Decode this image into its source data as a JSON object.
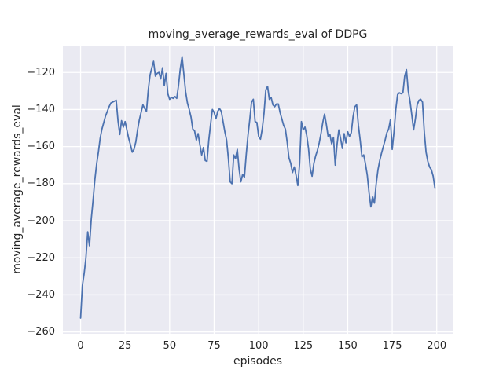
{
  "chart_data": {
    "type": "line",
    "title": "moving_average_rewards_eval of DDPG",
    "xlabel": "episodes",
    "ylabel": "moving_average_rewards_eval",
    "style": "seaborn-darkgrid",
    "grid": true,
    "legend": false,
    "xlim": [
      -9.95,
      208.95
    ],
    "ylim": [
      -261,
      -105.5
    ],
    "x_tick_values": [
      0,
      25,
      50,
      75,
      100,
      125,
      150,
      175,
      200
    ],
    "x_tick_labels": [
      "0",
      "25",
      "50",
      "75",
      "100",
      "125",
      "150",
      "175",
      "200"
    ],
    "y_tick_values": [
      -120,
      -140,
      -160,
      -180,
      -200,
      -220,
      -240,
      -260
    ],
    "y_tick_labels": [
      "−120",
      "−140",
      "−160",
      "−180",
      "−200",
      "−220",
      "−240",
      "−260"
    ],
    "colors": {
      "line": "#4c72b0",
      "plot_background": "#eaeaf2",
      "grid": "#ffffff",
      "text": "#262626",
      "figure_background": "#ffffff"
    },
    "series": [
      {
        "name": "moving_average_rewards_eval",
        "x_start": 0,
        "x_step": 1,
        "values": [
          -252.5,
          -235,
          -228.5,
          -220,
          -206,
          -213.5,
          -199,
          -189,
          -178,
          -169.5,
          -163,
          -155.5,
          -150.5,
          -147,
          -143.5,
          -141,
          -138.5,
          -136.5,
          -136,
          -135.5,
          -135,
          -146,
          -153.5,
          -146,
          -149.5,
          -146.5,
          -151,
          -155.5,
          -159,
          -163,
          -161.5,
          -157.5,
          -151,
          -145.5,
          -141.5,
          -137.5,
          -139.5,
          -141,
          -129.5,
          -121.5,
          -117.5,
          -114,
          -122,
          -120.5,
          -120,
          -123.5,
          -117.5,
          -127,
          -120.5,
          -131.5,
          -134.5,
          -133.5,
          -134,
          -133,
          -134,
          -127,
          -118,
          -111.5,
          -121,
          -130.5,
          -136.5,
          -140,
          -144,
          -150.5,
          -151.5,
          -156.5,
          -153,
          -159,
          -164.5,
          -160.5,
          -167.5,
          -168,
          -156.5,
          -148,
          -140,
          -141.5,
          -145,
          -141,
          -139.5,
          -141,
          -146.5,
          -152,
          -156.5,
          -166.5,
          -179,
          -180,
          -164.5,
          -166.5,
          -161.5,
          -172,
          -179,
          -175,
          -176.5,
          -164.5,
          -154,
          -145.5,
          -136,
          -134.5,
          -146.5,
          -147,
          -154.5,
          -156,
          -150.5,
          -142,
          -129.5,
          -127.5,
          -134.5,
          -133.5,
          -137.5,
          -138.5,
          -137,
          -137,
          -141.5,
          -145,
          -148.5,
          -150.5,
          -157.5,
          -166,
          -169,
          -174,
          -171,
          -175.5,
          -181,
          -169,
          -146.5,
          -151,
          -149.5,
          -154,
          -161,
          -172,
          -176,
          -169,
          -165,
          -162,
          -158,
          -153,
          -147,
          -142.5,
          -148,
          -154.5,
          -153.5,
          -158.5,
          -155,
          -170,
          -159,
          -151,
          -155.5,
          -161,
          -153,
          -158,
          -152,
          -154.5,
          -152.5,
          -144,
          -138.5,
          -137.5,
          -148.5,
          -156.5,
          -165.5,
          -164.5,
          -169.5,
          -175.5,
          -185,
          -192.5,
          -187,
          -190.5,
          -180,
          -172.5,
          -167.5,
          -163.5,
          -160,
          -156.5,
          -152.5,
          -150.5,
          -145.5,
          -161.5,
          -152,
          -140,
          -132,
          -131,
          -131.5,
          -131,
          -122,
          -118.5,
          -130,
          -135.5,
          -143,
          -151,
          -145,
          -137.5,
          -135,
          -134.5,
          -136,
          -152,
          -163,
          -168,
          -171,
          -172.5,
          -176,
          -182.5
        ]
      }
    ]
  }
}
